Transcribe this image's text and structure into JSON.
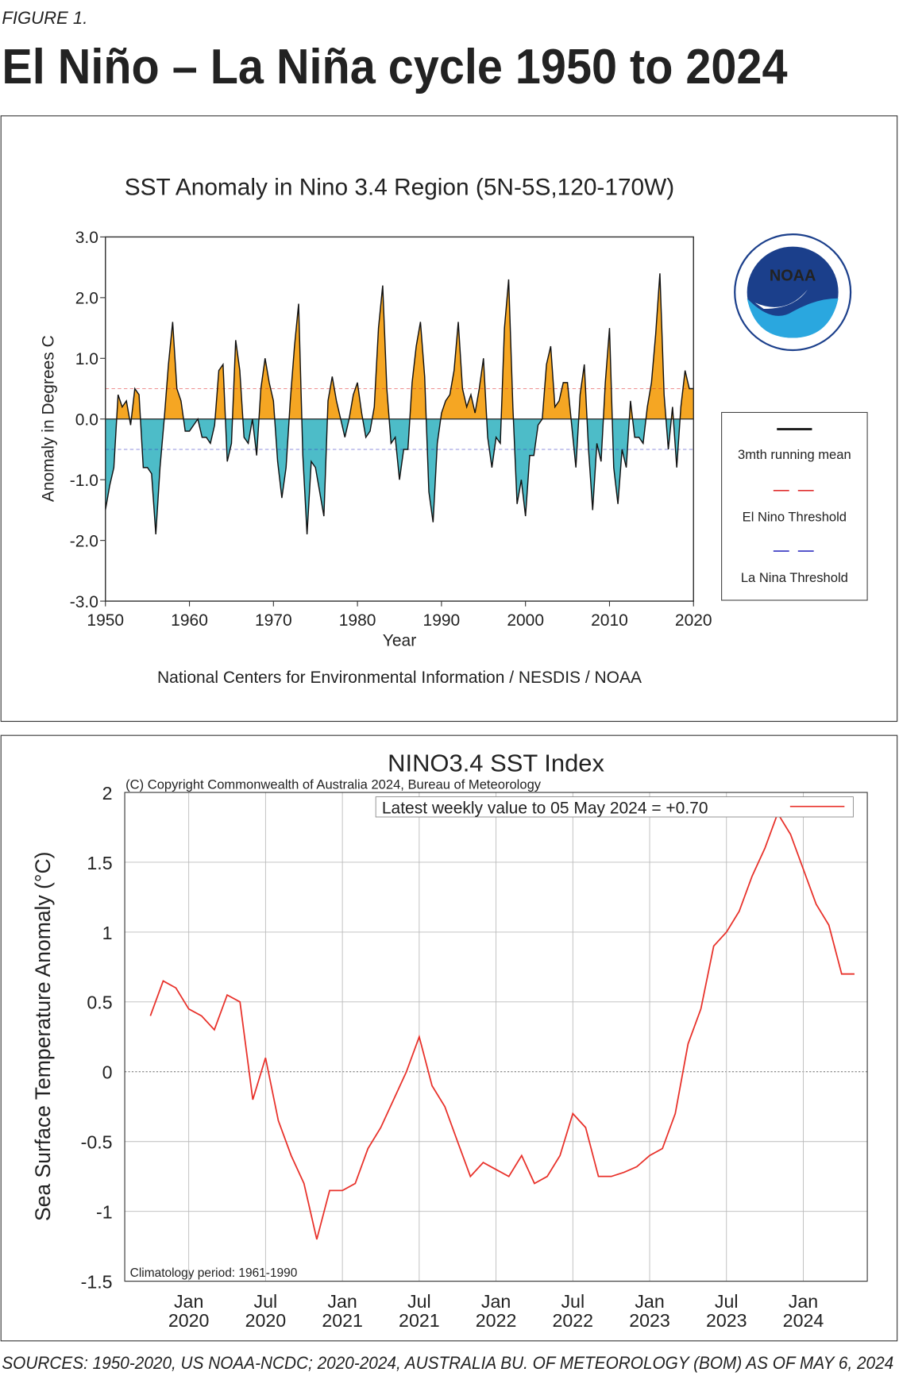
{
  "figure_label": "FIGURE 1.",
  "title": "El Niño – La Niña cycle 1950 to 2024",
  "source": "SOURCES: 1950-2020, US NOAA-NCDC; 2020-2024, AUSTRALIA BU. OF METEOROLOGY (BOM) AS OF MAY 6, 2024",
  "chart_data": [
    {
      "type": "area",
      "title": "SST Anomaly in Nino 3.4 Region (5N-5S,120-170W)",
      "xlabel": "Year",
      "ylabel": "Anomaly in Degrees C",
      "credit": "National Centers for Environmental Information / NESDIS / NOAA",
      "logo_text": "NOAA",
      "positive_color": "#f5a623",
      "negative_color": "#4dbcc8",
      "line_color": "#111111",
      "el_nino_threshold": 0.5,
      "la_nina_threshold": -0.5,
      "el_nino_color": "#e03030",
      "la_nina_color": "#3030c0",
      "legend": [
        "3mth running mean",
        "El Nino Threshold",
        "La Nina Threshold"
      ],
      "xlim": [
        1950,
        2020
      ],
      "xticks": [
        1950,
        1960,
        1970,
        1980,
        1990,
        2000,
        2010,
        2020
      ],
      "ylim": [
        -3,
        3
      ],
      "yticks": [
        {
          "value": 3,
          "label": "3.0"
        },
        {
          "value": 2,
          "label": "2.0"
        },
        {
          "value": 1,
          "label": "1.0"
        },
        {
          "value": 0,
          "label": "0.0"
        },
        {
          "value": -1,
          "label": "-1.0"
        },
        {
          "value": -2,
          "label": "-2.0"
        },
        {
          "value": -3,
          "label": "-3.0"
        }
      ],
      "x": [
        1950.0,
        1950.5,
        1951.0,
        1951.5,
        1952.0,
        1952.5,
        1953.0,
        1953.5,
        1954.0,
        1954.5,
        1955.0,
        1955.5,
        1956.0,
        1956.5,
        1957.0,
        1957.5,
        1958.0,
        1958.5,
        1959.0,
        1959.5,
        1960.0,
        1961.0,
        1961.5,
        1962.0,
        1962.5,
        1963.0,
        1963.5,
        1964.0,
        1964.5,
        1965.0,
        1965.5,
        1966.0,
        1966.5,
        1967.0,
        1967.5,
        1968.0,
        1968.5,
        1969.0,
        1969.5,
        1970.0,
        1970.5,
        1971.0,
        1971.5,
        1972.0,
        1972.5,
        1973.0,
        1973.5,
        1974.0,
        1974.5,
        1975.0,
        1975.5,
        1976.0,
        1976.5,
        1977.0,
        1977.5,
        1978.0,
        1978.5,
        1979.0,
        1979.5,
        1980.0,
        1980.5,
        1981.0,
        1981.5,
        1982.0,
        1982.5,
        1983.0,
        1983.5,
        1984.0,
        1984.5,
        1985.0,
        1985.5,
        1986.0,
        1986.5,
        1987.0,
        1987.5,
        1988.0,
        1988.5,
        1989.0,
        1989.5,
        1990.0,
        1990.5,
        1991.0,
        1991.5,
        1992.0,
        1992.5,
        1993.0,
        1993.5,
        1994.0,
        1994.5,
        1995.0,
        1995.5,
        1996.0,
        1996.5,
        1997.0,
        1997.5,
        1998.0,
        1998.5,
        1999.0,
        1999.5,
        2000.0,
        2000.5,
        2001.0,
        2001.5,
        2002.0,
        2002.5,
        2003.0,
        2003.5,
        2004.0,
        2004.5,
        2005.0,
        2005.5,
        2006.0,
        2006.5,
        2007.0,
        2007.5,
        2008.0,
        2008.5,
        2009.0,
        2009.5,
        2010.0,
        2010.5,
        2011.0,
        2011.5,
        2012.0,
        2012.5,
        2013.0,
        2013.5,
        2014.0,
        2014.5,
        2015.0,
        2015.5,
        2016.0,
        2016.5,
        2017.0,
        2017.5,
        2018.0,
        2018.5,
        2019.0,
        2019.5,
        2020.0
      ],
      "values": [
        -1.5,
        -1.1,
        -0.8,
        0.4,
        0.2,
        0.3,
        -0.1,
        0.5,
        0.4,
        -0.8,
        -0.8,
        -0.9,
        -1.9,
        -0.8,
        0.0,
        0.9,
        1.6,
        0.5,
        0.3,
        -0.2,
        -0.2,
        0.0,
        -0.3,
        -0.3,
        -0.4,
        -0.1,
        0.8,
        0.9,
        -0.7,
        -0.4,
        1.3,
        0.8,
        -0.3,
        -0.4,
        0.0,
        -0.6,
        0.5,
        1.0,
        0.6,
        0.3,
        -0.7,
        -1.3,
        -0.8,
        0.3,
        1.2,
        1.9,
        -0.6,
        -1.9,
        -0.7,
        -0.8,
        -1.2,
        -1.6,
        0.3,
        0.7,
        0.3,
        0.0,
        -0.3,
        0.0,
        0.4,
        0.6,
        0.1,
        -0.3,
        -0.2,
        0.2,
        1.5,
        2.2,
        0.5,
        -0.4,
        -0.3,
        -1.0,
        -0.5,
        -0.5,
        0.6,
        1.2,
        1.6,
        0.7,
        -1.2,
        -1.7,
        -0.4,
        0.1,
        0.3,
        0.4,
        0.8,
        1.6,
        0.5,
        0.2,
        0.4,
        0.1,
        0.5,
        1.0,
        -0.3,
        -0.8,
        -0.3,
        -0.4,
        1.5,
        2.3,
        0.2,
        -1.4,
        -1.0,
        -1.6,
        -0.6,
        -0.6,
        -0.1,
        0.0,
        0.9,
        1.2,
        0.2,
        0.3,
        0.6,
        0.6,
        -0.1,
        -0.8,
        0.4,
        0.9,
        -0.5,
        -1.5,
        -0.4,
        -0.7,
        0.6,
        1.5,
        -0.8,
        -1.4,
        -0.5,
        -0.8,
        0.3,
        -0.3,
        -0.3,
        -0.4,
        0.2,
        0.6,
        1.4,
        2.4,
        0.4,
        -0.5,
        0.2,
        -0.8,
        0.2,
        0.8,
        0.5,
        0.5
      ]
    },
    {
      "type": "line",
      "title": "NINO3.4 SST Index",
      "copyright": "(C) Copyright Commonwealth of Australia 2024, Bureau of Meteorology",
      "legend": "Latest weekly value to 05 May 2024 = +0.70",
      "note": "Climatology period: 1961-1990",
      "ylabel": "Sea Surface Temperature Anomaly (°C)",
      "color": "#e8312a",
      "grid": true,
      "xlim": [
        "2019-08",
        "2024-06"
      ],
      "xticks": [
        {
          "value": "2020-01",
          "label": "Jan 2020"
        },
        {
          "value": "2020-07",
          "label": "Jul 2020"
        },
        {
          "value": "2021-01",
          "label": "Jan 2021"
        },
        {
          "value": "2021-07",
          "label": "Jul 2021"
        },
        {
          "value": "2022-01",
          "label": "Jan 2022"
        },
        {
          "value": "2022-07",
          "label": "Jul 2022"
        },
        {
          "value": "2023-01",
          "label": "Jan 2023"
        },
        {
          "value": "2023-07",
          "label": "Jul 2023"
        },
        {
          "value": "2024-01",
          "label": "Jan 2024"
        }
      ],
      "ylim": [
        -1.5,
        2
      ],
      "yticks": [
        2,
        1.5,
        1,
        0.5,
        0,
        -0.5,
        -1,
        -1.5
      ],
      "x": [
        "2019-10",
        "2019-11",
        "2019-12",
        "2020-01",
        "2020-02",
        "2020-03",
        "2020-04",
        "2020-05",
        "2020-06",
        "2020-07",
        "2020-08",
        "2020-09",
        "2020-10",
        "2020-11",
        "2020-12",
        "2021-01",
        "2021-02",
        "2021-03",
        "2021-04",
        "2021-05",
        "2021-06",
        "2021-07",
        "2021-08",
        "2021-09",
        "2021-10",
        "2021-11",
        "2021-12",
        "2022-01",
        "2022-02",
        "2022-03",
        "2022-04",
        "2022-05",
        "2022-06",
        "2022-07",
        "2022-08",
        "2022-09",
        "2022-10",
        "2022-11",
        "2022-12",
        "2023-01",
        "2023-02",
        "2023-03",
        "2023-04",
        "2023-05",
        "2023-06",
        "2023-07",
        "2023-08",
        "2023-09",
        "2023-10",
        "2023-11",
        "2023-12",
        "2024-01",
        "2024-02",
        "2024-03",
        "2024-04",
        "2024-05"
      ],
      "values": [
        0.4,
        0.65,
        0.6,
        0.45,
        0.4,
        0.3,
        0.55,
        0.5,
        -0.2,
        0.1,
        -0.35,
        -0.6,
        -0.8,
        -1.2,
        -0.85,
        -0.85,
        -0.8,
        -0.55,
        -0.4,
        -0.2,
        0.0,
        0.25,
        -0.1,
        -0.25,
        -0.5,
        -0.75,
        -0.65,
        -0.7,
        -0.75,
        -0.6,
        -0.8,
        -0.75,
        -0.6,
        -0.3,
        -0.4,
        -0.75,
        -0.75,
        -0.72,
        -0.68,
        -0.6,
        -0.55,
        -0.3,
        0.2,
        0.45,
        0.9,
        1.0,
        1.15,
        1.4,
        1.6,
        1.85,
        1.7,
        1.45,
        1.2,
        1.05,
        0.7,
        0.7
      ]
    }
  ]
}
